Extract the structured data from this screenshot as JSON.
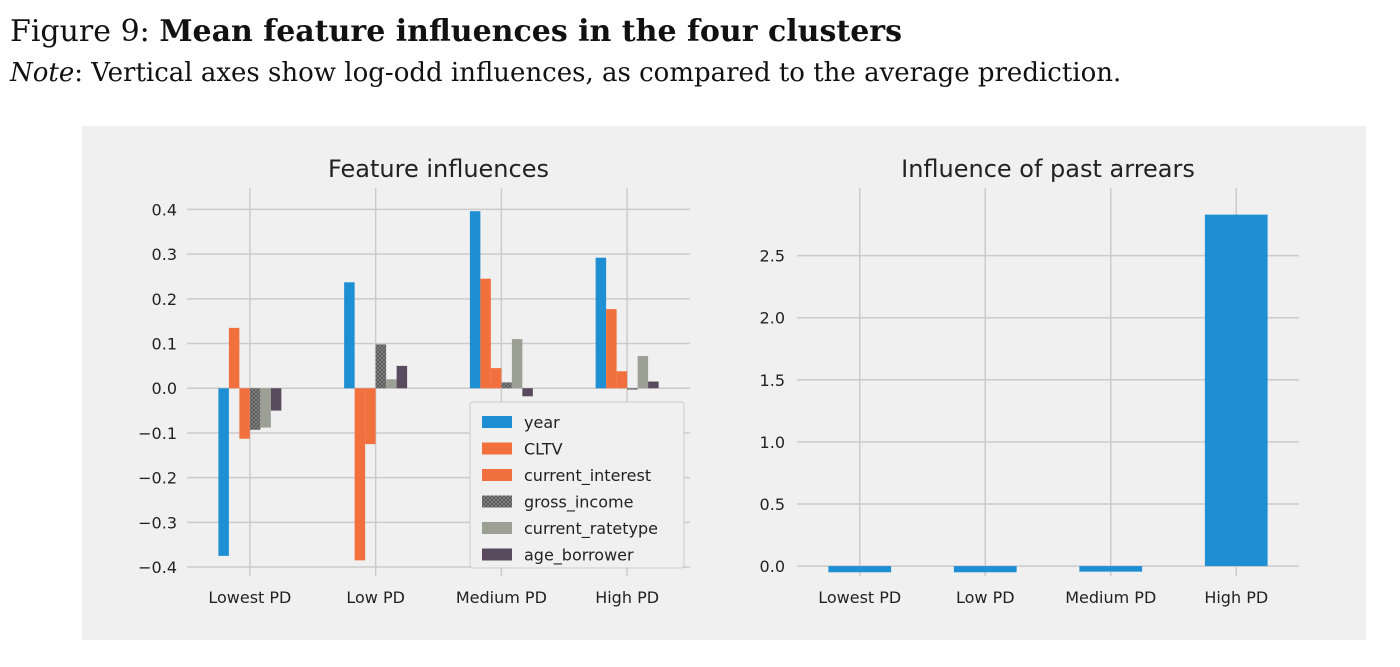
{
  "caption": {
    "figure_label": "Figure 9:",
    "figure_title": "Mean feature influences in the four clusters",
    "note_label": "Note",
    "note_text": ": Vertical axes show log-odd influences, as compared to the average prediction."
  },
  "colors": {
    "panel_bg": "#f0f0f0",
    "grid": "#cbcbcb",
    "year": "#1f8fd4",
    "CLTV": "#f2703d",
    "current_interest": "#f2703d",
    "gross_income": "#8a8a8a",
    "current_ratetype": "#9b9f94",
    "age_borrower": "#5a4a5e",
    "past_arrears": "#1f8fd4"
  },
  "chart_data": [
    {
      "type": "bar",
      "title": "Feature influences",
      "xlabel": "",
      "ylabel": "",
      "categories": [
        "Lowest PD",
        "Low PD",
        "Medium PD",
        "High PD"
      ],
      "ylim": [
        -0.42,
        0.43
      ],
      "yticks": [
        -0.4,
        -0.3,
        -0.2,
        -0.1,
        0.0,
        0.1,
        0.2,
        0.3,
        0.4
      ],
      "ytick_labels": [
        "−0.4",
        "−0.3",
        "−0.2",
        "−0.1",
        "0.0",
        "0.1",
        "0.2",
        "0.3",
        "0.4"
      ],
      "grid": true,
      "legend_position": "lower-right",
      "series": [
        {
          "name": "year",
          "color": "#1f8fd4",
          "hatch": false,
          "values": [
            -0.375,
            0.237,
            0.396,
            0.292
          ]
        },
        {
          "name": "CLTV",
          "color": "#f2703d",
          "hatch": false,
          "values": [
            0.135,
            -0.385,
            0.245,
            0.177
          ]
        },
        {
          "name": "current_interest",
          "color": "#f2703d",
          "hatch": false,
          "values": [
            -0.113,
            -0.125,
            0.045,
            0.038
          ]
        },
        {
          "name": "gross_income",
          "color": "#8a8a8a",
          "hatch": true,
          "values": [
            -0.093,
            0.098,
            0.013,
            -0.003
          ]
        },
        {
          "name": "current_ratetype",
          "color": "#9b9f94",
          "hatch": false,
          "values": [
            -0.088,
            0.02,
            0.11,
            0.072
          ]
        },
        {
          "name": "age_borrower",
          "color": "#5a4a5e",
          "hatch": false,
          "values": [
            -0.05,
            0.05,
            -0.018,
            0.015
          ]
        }
      ]
    },
    {
      "type": "bar",
      "title": "Influence of past arrears",
      "xlabel": "",
      "ylabel": "",
      "categories": [
        "Lowest PD",
        "Low PD",
        "Medium PD",
        "High PD"
      ],
      "ylim": [
        -0.08,
        2.98
      ],
      "yticks": [
        0.0,
        0.5,
        1.0,
        1.5,
        2.0,
        2.5
      ],
      "ytick_labels": [
        "0.0",
        "0.5",
        "1.0",
        "1.5",
        "2.0",
        "2.5"
      ],
      "grid": true,
      "series": [
        {
          "color": "#1f8fd4",
          "values": [
            -0.05,
            -0.05,
            -0.045,
            2.83
          ]
        }
      ]
    }
  ]
}
